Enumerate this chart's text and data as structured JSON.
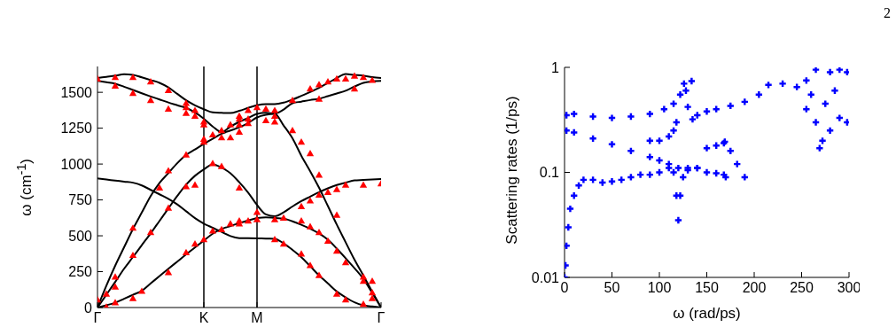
{
  "chart_data": [
    {
      "type": "line",
      "ylabel": "ω (cm$^{-1}$)",
      "categories": [
        "Γ",
        null,
        null,
        null,
        null,
        null,
        null,
        null,
        null,
        null,
        null,
        null,
        "K",
        null,
        null,
        null,
        null,
        null,
        "M",
        null,
        null,
        null,
        null,
        null,
        null,
        null,
        null,
        null,
        null,
        null,
        null,
        null,
        "Γ"
      ],
      "ylim": [
        0,
        1680
      ],
      "yticks": [
        0,
        250,
        500,
        750,
        1000,
        1250,
        1500
      ],
      "ref_lines": [
        {
          "axis": "x",
          "value": "K",
          "color": "#000000"
        },
        {
          "axis": "x",
          "value": "M",
          "color": "#000000"
        }
      ],
      "series": [
        {
          "color": "#000000",
          "marker": "none",
          "values": [
            0,
            16,
            33,
            61,
            89,
            117,
            168,
            219,
            270,
            320,
            370,
            419,
            467,
            514,
            547,
            568,
            589,
            607,
            624,
            null,
            null,
            null,
            null,
            null,
            null,
            null,
            null,
            null,
            null,
            null,
            null,
            null,
            null
          ]
        },
        {
          "color": "#000000",
          "marker": "none",
          "values": [
            null,
            null,
            null,
            null,
            null,
            null,
            null,
            null,
            null,
            null,
            null,
            null,
            null,
            null,
            null,
            null,
            null,
            null,
            624,
            629,
            624,
            620,
            601,
            577,
            549,
            516,
            472,
            411,
            344,
            274,
            200,
            102,
            0
          ]
        },
        {
          "color": "#000000",
          "marker": "none",
          "values": [
            900,
            892,
            885,
            877,
            870,
            851,
            820,
            789,
            758,
            719,
            671,
            623,
            585,
            556,
            527,
            498,
            484,
            483,
            482,
            480,
            479,
            447,
            402,
            351,
            288,
            224,
            168,
            112,
            71,
            36,
            15,
            8,
            0
          ]
        },
        {
          "color": "#000000",
          "marker": "none",
          "values": [
            0,
            89,
            178,
            270,
            352,
            435,
            517,
            604,
            691,
            777,
            856,
            918,
            963,
            998,
            975,
            936,
            873,
            801,
            715,
            649,
            636,
            663,
            704,
            742,
            773,
            804,
            831,
            854,
            870,
            886,
            889,
            893,
            896
          ]
        },
        {
          "color": "#000000",
          "marker": "none",
          "values": [
            0,
            152,
            292,
            420,
            547,
            662,
            777,
            869,
            937,
            1006,
            1064,
            1102,
            1140,
            1176,
            1211,
            1234,
            1256,
            1286,
            1325,
            1343,
            1349,
            1269,
            1180,
            1058,
            950,
            835,
            707,
            578,
            455,
            333,
            223,
            110,
            0
          ]
        },
        {
          "color": "#000000",
          "marker": "none",
          "values": [
            1600,
            1608,
            1616,
            1626,
            1622,
            1604,
            1585,
            1566,
            1534,
            1489,
            1444,
            1409,
            1382,
            1360,
            1357,
            1355,
            1371,
            1391,
            1410,
            1418,
            1418,
            1428,
            1449,
            1475,
            1502,
            1531,
            1565,
            1599,
            1627,
            1621,
            1615,
            1606,
            1600
          ]
        },
        {
          "color": "#000000",
          "marker": "none",
          "values": [
            1580,
            1570,
            1560,
            1539,
            1516,
            1493,
            1471,
            1450,
            1429,
            1410,
            1391,
            1359,
            1316,
            1262,
            1222,
            1261,
            1294,
            1321,
            1349,
            1357,
            1352,
            1380,
            1424,
            1435,
            1446,
            1455,
            1473,
            1492,
            1511,
            1540,
            1566,
            1576,
            1580
          ]
        },
        {
          "type": "scatter",
          "color": "#ff0000",
          "marker": "triangle",
          "values": [
            1590,
            90,
            1600,
            null,
            1600,
            110,
            1570,
            830,
            1510,
            null,
            1420,
            1370,
            1290,
            1200,
            1180,
            1270,
            1270,
            600,
            610,
            1300,
            610,
            620,
            1230,
            600,
            560,
            520,
            460,
            390,
            310,
            1610,
            210,
            180,
            860
          ]
        },
        {
          "type": "scatter",
          "color": "#ff0000",
          "marker": "triangle",
          "values": [
            50,
            0,
            1540,
            null,
            1490,
            null,
            1440,
            null,
            1380,
            null,
            1350,
            1330,
            1270,
            1000,
            1230,
            1180,
            1330,
            1310,
            660,
            1380,
            1290,
            440,
            1440,
            370,
            290,
            220,
            800,
            90,
            50,
            1520,
            180,
            100,
            null
          ]
        },
        {
          "type": "scatter",
          "color": "#ff0000",
          "marker": "triangle",
          "values": [
            null,
            null,
            210,
            null,
            550,
            null,
            520,
            null,
            950,
            null,
            1390,
            850,
            1150,
            530,
            980,
            580,
            1310,
            1280,
            1390,
            null,
            470,
            null,
            null,
            700,
            740,
            780,
            1570,
            820,
            850,
            null,
            20,
            60,
            null
          ]
        },
        {
          "type": "scatter",
          "color": "#ff0000",
          "marker": "triangle",
          "values": [
            null,
            null,
            140,
            null,
            360,
            null,
            null,
            null,
            690,
            null,
            1060,
            440,
            1170,
            null,
            540,
            null,
            1220,
            1370,
            null,
            null,
            1330,
            null,
            null,
            1150,
            1070,
            920,
            null,
            640,
            1590,
            null,
            850,
            1580,
            null
          ]
        },
        {
          "type": "scatter",
          "color": "#ff0000",
          "marker": "triangle",
          "values": [
            null,
            null,
            30,
            null,
            60,
            null,
            null,
            null,
            240,
            null,
            840,
            null,
            470,
            null,
            null,
            null,
            830,
            null,
            null,
            null,
            1370,
            null,
            null,
            null,
            1520,
            1450,
            null,
            1590,
            null,
            null,
            1600,
            null,
            null
          ]
        },
        {
          "type": "scatter",
          "color": "#ff0000",
          "marker": "triangle",
          "values": [
            null,
            null,
            null,
            null,
            null,
            null,
            null,
            null,
            null,
            null,
            380,
            null,
            null,
            null,
            null,
            null,
            580,
            null,
            null,
            null,
            null,
            null,
            null,
            null,
            null,
            1550,
            null,
            null,
            null,
            null,
            null,
            null,
            null
          ]
        },
        {
          "type": "scatter",
          "color": "#ff0000",
          "marker": "triangle",
          "values": [
            null,
            null,
            null,
            null,
            null,
            null,
            null,
            null,
            null,
            null,
            null,
            null,
            null,
            null,
            null,
            null,
            600,
            null,
            null,
            null,
            null,
            null,
            null,
            null,
            null,
            null,
            null,
            null,
            null,
            null,
            null,
            null,
            null
          ]
        }
      ]
    },
    {
      "type": "scatter",
      "xlabel": "ω (rad/ps)",
      "ylabel": "Scattering rates (1/ps)",
      "log": "y",
      "xlim": [
        0,
        300
      ],
      "xticks": [
        0,
        50,
        100,
        150,
        200,
        250,
        300
      ],
      "ylim": [
        0.01,
        1
      ],
      "yticks": [
        0.01,
        0.1,
        1
      ],
      "annotations": [
        "2"
      ],
      "series": [
        {
          "color": "#0000ff",
          "marker": "cross",
          "x": [
            2,
            10,
            30,
            50,
            70,
            90,
            105,
            115,
            122,
            126,
            128,
            130,
            134,
            135,
            140,
            150,
            160,
            175,
            190,
            205,
            215,
            230,
            245,
            255,
            265,
            280,
            290,
            298,
            255,
            265,
            269,
            272,
            280,
            290,
            298,
            260,
            275,
            285,
            2,
            10,
            30,
            50,
            70,
            90,
            100,
            110,
            120,
            130,
            140,
            150,
            160,
            168,
            169,
            175,
            182,
            190,
            90,
            100,
            110,
            115,
            118,
            0,
            1,
            2,
            4,
            6,
            10,
            15,
            20,
            30,
            40,
            50,
            60,
            70,
            80,
            90,
            100,
            110,
            115,
            118,
            120,
            122,
            125,
            130,
            140,
            150,
            160,
            168,
            170
          ],
          "values": [
            0.35,
            0.36,
            0.34,
            0.33,
            0.34,
            0.36,
            0.4,
            0.45,
            0.55,
            0.7,
            0.6,
            0.42,
            0.74,
            0.32,
            0.35,
            0.38,
            0.4,
            0.43,
            0.47,
            0.55,
            0.68,
            0.7,
            0.65,
            0.75,
            0.95,
            0.9,
            0.95,
            0.9,
            0.4,
            0.3,
            0.17,
            0.2,
            0.25,
            0.33,
            0.3,
            0.55,
            0.45,
            0.6,
            0.25,
            0.24,
            0.21,
            0.185,
            0.16,
            0.14,
            0.13,
            0.12,
            0.11,
            0.105,
            0.11,
            0.17,
            0.18,
            0.19,
            0.196,
            0.16,
            0.12,
            0.09,
            0.2,
            0.2,
            0.22,
            0.25,
            0.3,
            0.01,
            0.013,
            0.02,
            0.03,
            0.045,
            0.06,
            0.075,
            0.085,
            0.085,
            0.08,
            0.082,
            0.085,
            0.09,
            0.095,
            0.095,
            0.1,
            0.11,
            0.1,
            0.06,
            0.035,
            0.06,
            0.09,
            0.11,
            0.11,
            0.1,
            0.098,
            0.095,
            0.09
          ]
        }
      ]
    }
  ]
}
